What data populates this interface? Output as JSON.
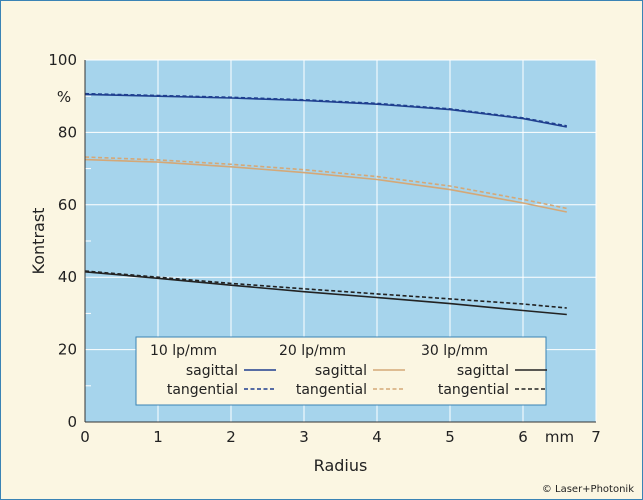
{
  "chart_data": {
    "type": "line",
    "title": "",
    "xlabel": "Radius",
    "ylabel": "Kontrast",
    "x_unit": "mm",
    "y_unit": "%",
    "xlim": [
      0,
      7
    ],
    "ylim": [
      0,
      100
    ],
    "x_ticks": [
      "0",
      "1",
      "2",
      "3",
      "4",
      "5",
      "6",
      "7"
    ],
    "y_ticks": [
      "0",
      "20",
      "40",
      "60",
      "80",
      "100"
    ],
    "grid": true,
    "legend_position": "bottom-inside",
    "x": [
      0,
      1,
      2,
      3,
      4,
      5,
      6,
      6.6
    ],
    "series": [
      {
        "name": "10 lp/mm sagittal",
        "group": "10 lp/mm",
        "kind": "sagittal",
        "color": "#1f3f8f",
        "dashed": false,
        "values": [
          90.5,
          90.0,
          89.5,
          88.8,
          87.8,
          86.3,
          83.8,
          81.5
        ]
      },
      {
        "name": "10 lp/mm tangential",
        "group": "10 lp/mm",
        "kind": "tangential",
        "color": "#1f3f8f",
        "dashed": true,
        "values": [
          90.7,
          90.2,
          89.7,
          89.0,
          88.0,
          86.5,
          84.0,
          81.8
        ]
      },
      {
        "name": "20 lp/mm sagittal",
        "group": "20 lp/mm",
        "kind": "sagittal",
        "color": "#d4a878",
        "dashed": false,
        "values": [
          72.5,
          71.8,
          70.5,
          68.9,
          67.0,
          64.2,
          60.5,
          58.0
        ]
      },
      {
        "name": "20 lp/mm tangential",
        "group": "20 lp/mm",
        "kind": "tangential",
        "color": "#d4a878",
        "dashed": true,
        "values": [
          73.2,
          72.4,
          71.2,
          69.7,
          67.8,
          65.2,
          61.5,
          59.0
        ]
      },
      {
        "name": "30 lp/mm sagittal",
        "group": "30 lp/mm",
        "kind": "sagittal",
        "color": "#222222",
        "dashed": false,
        "values": [
          41.5,
          39.7,
          37.8,
          36.0,
          34.4,
          32.7,
          30.8,
          29.7
        ]
      },
      {
        "name": "30 lp/mm tangential",
        "group": "30 lp/mm",
        "kind": "tangential",
        "color": "#222222",
        "dashed": true,
        "values": [
          41.7,
          40.0,
          38.3,
          36.8,
          35.4,
          34.0,
          32.6,
          31.5
        ]
      }
    ],
    "legend": {
      "groups": [
        "10 lp/mm",
        "20 lp/mm",
        "30 lp/mm"
      ],
      "sagittal_label": "sagittal",
      "tangential_label": "tangential"
    }
  },
  "credit": "© Laser+Photonik",
  "colors": {
    "plot_bg": "#a6d4ec",
    "grid": "#ffffff",
    "frame": "#3a83b5",
    "page_bg": "#fbf6e2",
    "legend_bg": "#fbf6e2"
  }
}
